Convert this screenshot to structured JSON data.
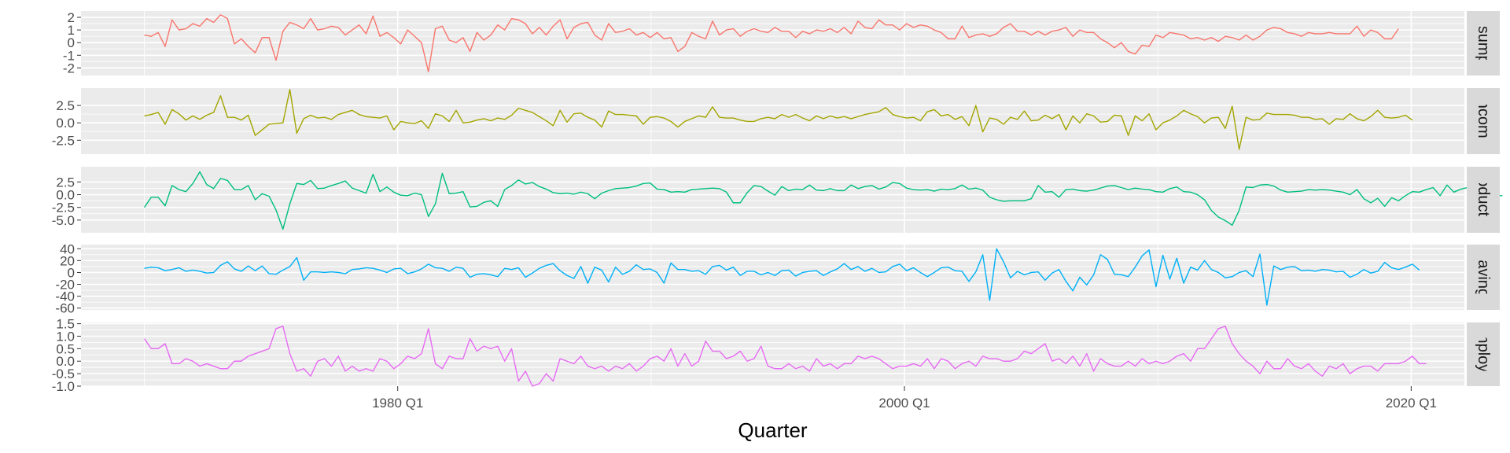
{
  "chart_data": {
    "type": "line",
    "title": "",
    "xlabel": "Quarter",
    "x_start_year": 1970,
    "x_end_year": 2019.5,
    "xlim": [
      1967.5,
      2022.1
    ],
    "x_breaks": [
      1980,
      2000,
      2020
    ],
    "x_tick_labels": [
      "1980 Q1",
      "2000 Q1",
      "2020 Q1"
    ],
    "grid": true,
    "facet_strip": "right",
    "series": [
      {
        "name": "Consumption",
        "strip_label": "Consumption",
        "color": "#F8766D",
        "ylim": [
          -2.6,
          2.5
        ],
        "y_breaks": [
          -2,
          -1,
          0,
          1,
          2
        ],
        "y_tick_labels": [
          "-2",
          "-1",
          "0",
          "1",
          "2"
        ],
        "values": [
          0.6,
          0.5,
          0.8,
          -0.3,
          1.8,
          1.0,
          1.1,
          1.5,
          1.3,
          1.9,
          1.6,
          2.2,
          1.9,
          -0.1,
          0.3,
          -0.3,
          -0.8,
          0.4,
          0.4,
          -1.4,
          0.9,
          1.6,
          1.4,
          1.1,
          1.9,
          1.0,
          1.1,
          1.3,
          1.2,
          0.6,
          1.0,
          1.4,
          0.7,
          2.1,
          0.5,
          0.8,
          0.4,
          -0.1,
          1.0,
          0.5,
          0.0,
          -2.3,
          1.1,
          1.3,
          0.2,
          0.0,
          0.4,
          -0.7,
          0.8,
          0.2,
          0.6,
          1.4,
          1.0,
          1.9,
          1.8,
          1.5,
          0.7,
          1.2,
          0.6,
          1.3,
          1.8,
          0.3,
          1.2,
          1.5,
          1.6,
          0.6,
          0.2,
          1.5,
          0.8,
          0.9,
          1.1,
          0.6,
          0.8,
          0.4,
          0.8,
          0.3,
          0.4,
          -0.7,
          -0.3,
          0.8,
          0.5,
          0.3,
          1.7,
          0.6,
          1.0,
          1.1,
          0.5,
          0.9,
          1.1,
          0.9,
          0.8,
          1.2,
          0.9,
          0.9,
          0.4,
          0.9,
          0.7,
          1.0,
          0.9,
          1.1,
          0.8,
          1.2,
          0.7,
          1.7,
          1.2,
          1.1,
          1.8,
          1.4,
          1.4,
          1.0,
          1.5,
          1.2,
          1.4,
          1.3,
          1.0,
          0.8,
          0.3,
          0.3,
          1.3,
          0.4,
          0.6,
          0.7,
          0.5,
          0.7,
          1.2,
          1.5,
          0.9,
          0.9,
          0.6,
          0.9,
          0.6,
          0.9,
          1.0,
          1.2,
          0.5,
          1.0,
          0.8,
          0.8,
          0.3,
          0.0,
          -0.4,
          0.0,
          -0.7,
          -0.9,
          -0.2,
          -0.3,
          0.6,
          0.4,
          0.8,
          0.7,
          0.6,
          0.3,
          0.4,
          0.2,
          0.4,
          0.1,
          0.5,
          0.4,
          0.2,
          0.6,
          0.2,
          0.5,
          1.0,
          1.2,
          1.1,
          0.8,
          0.7,
          0.5,
          0.8,
          0.7,
          0.7,
          0.8,
          0.7,
          0.7,
          0.7,
          1.3,
          0.5,
          1.0,
          0.8,
          0.3,
          0.3,
          1.1
        ]
      },
      {
        "name": "Income",
        "strip_label": "Income",
        "color": "#A3A500",
        "ylim": [
          -4.5,
          5.0
        ],
        "y_breaks": [
          -2.5,
          0.0,
          2.5
        ],
        "y_tick_labels": [
          "-2.5",
          "0.0",
          "2.5"
        ],
        "values": [
          1.0,
          1.2,
          1.5,
          -0.2,
          1.9,
          1.3,
          0.4,
          1.0,
          0.5,
          1.1,
          1.5,
          3.9,
          0.8,
          0.8,
          0.4,
          1.1,
          -1.8,
          -1.0,
          -0.2,
          -0.1,
          0.0,
          4.8,
          -1.5,
          0.6,
          1.1,
          0.7,
          0.8,
          0.5,
          1.2,
          1.5,
          1.8,
          1.2,
          0.9,
          0.8,
          0.7,
          1.0,
          -1.0,
          0.2,
          0.0,
          -0.1,
          0.3,
          -0.8,
          1.3,
          1.0,
          0.2,
          1.8,
          0.0,
          0.1,
          0.4,
          0.6,
          0.3,
          0.7,
          0.5,
          1.1,
          2.1,
          1.8,
          1.5,
          0.9,
          0.3,
          -0.4,
          1.8,
          0.1,
          1.3,
          1.4,
          0.8,
          0.4,
          -0.6,
          1.7,
          1.2,
          1.2,
          1.1,
          1.0,
          -0.2,
          0.8,
          0.9,
          0.7,
          0.2,
          -0.6,
          0.2,
          0.6,
          1.0,
          0.8,
          2.3,
          0.8,
          0.7,
          0.7,
          0.4,
          0.2,
          0.2,
          0.6,
          0.8,
          0.6,
          1.2,
          0.8,
          1.2,
          0.7,
          0.3,
          1.0,
          0.6,
          1.0,
          0.7,
          0.9,
          0.6,
          0.9,
          1.2,
          1.4,
          1.6,
          2.2,
          1.2,
          0.9,
          0.7,
          0.8,
          0.3,
          1.6,
          1.9,
          1.0,
          1.2,
          0.5,
          0.9,
          -0.4,
          2.5,
          -1.3,
          0.7,
          0.5,
          -0.2,
          0.8,
          0.5,
          1.7,
          0.3,
          0.4,
          1.1,
          0.6,
          1.2,
          -1.0,
          1.0,
          0.0,
          1.3,
          1.0,
          0.1,
          0.2,
          1.1,
          1.0,
          -1.8,
          1.0,
          0.3,
          1.3,
          -1.0,
          0.0,
          0.4,
          1.0,
          1.8,
          1.3,
          0.9,
          0.0,
          0.7,
          0.8,
          -0.8,
          2.4,
          -3.8,
          0.8,
          0.4,
          0.5,
          1.4,
          1.2,
          1.2,
          1.2,
          1.1,
          0.8,
          0.8,
          0.5,
          0.6,
          -0.2,
          0.6,
          0.5,
          1.3,
          0.6,
          0.3,
          0.9,
          1.8,
          0.8,
          0.7,
          0.8,
          1.1,
          0.4
        ]
      },
      {
        "name": "Production",
        "strip_label": "Production",
        "color": "#00BF7D",
        "ylim": [
          -7.5,
          5.5
        ],
        "y_breaks": [
          -5.0,
          -2.5,
          0.0,
          2.5
        ],
        "y_tick_labels": [
          "-5.0",
          "-2.5",
          "0.0",
          "2.5"
        ],
        "values": [
          -2.5,
          -0.5,
          -0.5,
          -2.2,
          1.8,
          1.0,
          0.6,
          2.2,
          4.5,
          2.0,
          1.2,
          3.2,
          2.8,
          1.0,
          1.0,
          1.8,
          -1.0,
          0.2,
          -0.3,
          -3.0,
          -6.8,
          -1.8,
          2.2,
          2.0,
          2.8,
          1.2,
          1.3,
          1.8,
          2.2,
          2.7,
          1.3,
          0.8,
          0.3,
          4.0,
          0.6,
          1.5,
          0.5,
          -0.1,
          -0.2,
          0.3,
          0.0,
          -4.3,
          -1.8,
          4.2,
          0.2,
          0.3,
          0.6,
          -2.4,
          -2.3,
          -1.5,
          -1.2,
          -2.3,
          1.0,
          1.8,
          2.9,
          2.1,
          2.4,
          1.6,
          1.1,
          0.4,
          0.2,
          0.3,
          0.1,
          0.5,
          0.2,
          -0.8,
          0.3,
          0.8,
          1.2,
          1.3,
          1.4,
          1.7,
          2.2,
          2.3,
          1.1,
          1.0,
          0.5,
          0.6,
          0.5,
          1.0,
          1.1,
          1.2,
          1.3,
          1.2,
          0.5,
          -1.6,
          -1.6,
          0.4,
          1.8,
          1.6,
          0.7,
          -0.1,
          1.6,
          0.8,
          1.1,
          1.0,
          1.9,
          0.9,
          0.8,
          1.2,
          0.8,
          0.8,
          1.9,
          1.2,
          1.6,
          1.8,
          1.1,
          1.5,
          2.4,
          2.2,
          1.3,
          1.0,
          0.9,
          1.0,
          0.7,
          1.1,
          1.0,
          1.2,
          1.9,
          1.1,
          1.3,
          0.9,
          -0.5,
          -1.0,
          -1.3,
          -1.2,
          -1.2,
          -1.2,
          -0.8,
          1.8,
          0.5,
          0.6,
          -0.5,
          1.0,
          1.1,
          0.8,
          0.7,
          0.9,
          1.3,
          1.7,
          1.8,
          1.4,
          1.0,
          1.3,
          1.1,
          1.0,
          0.6,
          0.5,
          1.2,
          1.5,
          0.6,
          0.5,
          0.0,
          -1.0,
          -3.1,
          -4.4,
          -5.1,
          -6.0,
          -3.1,
          1.5,
          1.4,
          1.9,
          2.0,
          1.7,
          0.9,
          0.5,
          0.6,
          0.7,
          1.0,
          0.9,
          1.0,
          0.9,
          0.7,
          0.5,
          0.0,
          1.0,
          -0.8,
          -1.6,
          -0.7,
          -2.3,
          -0.6,
          -1.2,
          -0.2,
          0.6,
          0.5,
          1.0,
          1.4,
          -0.2,
          1.9,
          0.5,
          1.1,
          1.4,
          1.2,
          1.3,
          1.0,
          -0.2,
          -0.2
        ]
      },
      {
        "name": "Savings",
        "strip_label": "Savings",
        "color": "#00B0F6",
        "ylim": [
          -63,
          47
        ],
        "y_breaks": [
          -60,
          -40,
          -20,
          0,
          20,
          40
        ],
        "y_tick_labels": [
          "-60",
          "-40",
          "-20",
          "0",
          "20",
          "40"
        ],
        "values": [
          7,
          9,
          8,
          3,
          5,
          8,
          2,
          4,
          2,
          -1,
          0,
          12,
          18,
          6,
          2,
          11,
          3,
          11,
          -2,
          -3,
          4,
          10,
          25,
          -13,
          1,
          1,
          0,
          1,
          0,
          -2,
          5,
          6,
          8,
          7,
          4,
          0,
          6,
          7,
          -2,
          1,
          6,
          14,
          8,
          7,
          2,
          9,
          7,
          -8,
          -3,
          -2,
          -4,
          -7,
          7,
          5,
          8,
          -8,
          -1,
          7,
          12,
          15,
          3,
          -5,
          -10,
          10,
          -18,
          9,
          4,
          -16,
          9,
          -3,
          2,
          13,
          5,
          6,
          0,
          -18,
          16,
          5,
          5,
          2,
          3,
          -3,
          10,
          12,
          4,
          9,
          -5,
          2,
          2,
          -4,
          0,
          -5,
          3,
          4,
          -6,
          0,
          2,
          3,
          -5,
          1,
          6,
          15,
          5,
          10,
          2,
          7,
          0,
          1,
          10,
          14,
          3,
          8,
          0,
          -7,
          0,
          8,
          9,
          3,
          2,
          -15,
          1,
          30,
          -47,
          40,
          18,
          -9,
          2,
          -4,
          0,
          1,
          -13,
          -1,
          5,
          -15,
          -31,
          -8,
          -21,
          -4,
          30,
          22,
          -3,
          -4,
          -7,
          9,
          28,
          38,
          -24,
          29,
          -11,
          24,
          -18,
          9,
          4,
          20,
          5,
          0,
          -9,
          -7,
          0,
          3,
          -7,
          31,
          -55,
          11,
          5,
          9,
          10,
          3,
          4,
          2,
          5,
          4,
          1,
          2,
          -8,
          -3,
          5,
          -1,
          2,
          17,
          8,
          5,
          9,
          14,
          4
        ]
      },
      {
        "name": "Unemployment",
        "strip_label": "Unemployment",
        "color": "#E76BF3",
        "ylim": [
          -1.0,
          1.55
        ],
        "y_breaks": [
          -1.0,
          -0.5,
          0.0,
          0.5,
          1.0,
          1.5
        ],
        "y_tick_labels": [
          "-1.0",
          "-0.5",
          "0.0",
          "0.5",
          "1.0",
          "1.5"
        ],
        "values": [
          0.9,
          0.5,
          0.5,
          0.7,
          -0.1,
          -0.1,
          0.1,
          0.0,
          -0.2,
          -0.1,
          -0.2,
          -0.3,
          -0.3,
          0.0,
          0.0,
          0.2,
          0.3,
          0.4,
          0.5,
          1.3,
          1.4,
          0.3,
          -0.4,
          -0.3,
          -0.6,
          0.0,
          0.1,
          -0.2,
          0.2,
          -0.4,
          -0.2,
          -0.4,
          -0.3,
          -0.4,
          0.1,
          0.0,
          -0.3,
          -0.1,
          0.2,
          0.1,
          0.3,
          1.3,
          -0.1,
          -0.3,
          0.2,
          0.1,
          0.1,
          0.9,
          0.4,
          0.6,
          0.5,
          0.6,
          0.0,
          0.5,
          -0.8,
          -0.4,
          -1.0,
          -0.9,
          -0.5,
          -0.8,
          0.1,
          0.0,
          -0.1,
          0.2,
          -0.2,
          -0.3,
          -0.2,
          -0.4,
          -0.2,
          -0.3,
          -0.1,
          -0.4,
          -0.2,
          0.1,
          0.2,
          0.0,
          0.5,
          -0.2,
          0.3,
          -0.2,
          0.0,
          0.8,
          0.4,
          0.4,
          0.1,
          0.2,
          0.4,
          0.0,
          0.1,
          0.6,
          -0.2,
          -0.3,
          -0.3,
          -0.1,
          -0.3,
          -0.2,
          -0.4,
          0.1,
          -0.2,
          -0.1,
          -0.3,
          -0.1,
          -0.1,
          0.2,
          0.1,
          0.2,
          0.1,
          -0.1,
          -0.3,
          -0.2,
          -0.2,
          -0.1,
          -0.2,
          0.1,
          -0.3,
          0.1,
          0.0,
          -0.3,
          -0.1,
          0.0,
          -0.2,
          0.2,
          0.1,
          0.1,
          0.0,
          0.0,
          0.1,
          0.4,
          0.3,
          0.5,
          0.7,
          0.0,
          0.1,
          -0.1,
          0.2,
          -0.2,
          0.3,
          -0.4,
          0.1,
          -0.1,
          -0.2,
          -0.2,
          0.0,
          -0.2,
          0.1,
          -0.1,
          0.0,
          -0.1,
          0.0,
          0.2,
          0.3,
          0.0,
          0.5,
          0.5,
          0.9,
          1.3,
          1.4,
          0.7,
          0.3,
          0.0,
          -0.2,
          -0.5,
          0.0,
          -0.3,
          -0.3,
          0.1,
          -0.2,
          -0.3,
          -0.1,
          -0.4,
          -0.6,
          -0.2,
          -0.3,
          -0.1,
          -0.5,
          -0.3,
          -0.2,
          -0.2,
          -0.4,
          -0.1,
          -0.1,
          -0.1,
          0.0,
          0.2,
          -0.1,
          -0.1
        ]
      }
    ]
  }
}
